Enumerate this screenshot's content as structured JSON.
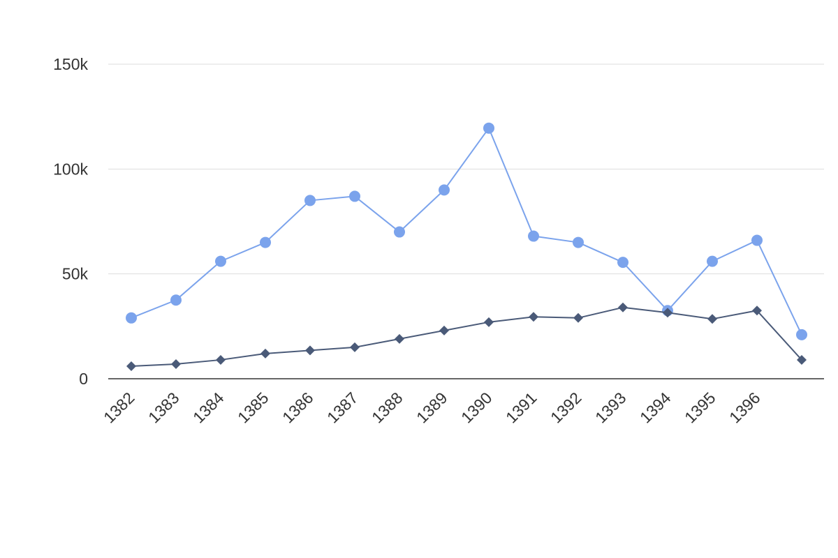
{
  "chart_data": {
    "type": "line",
    "title": "",
    "xlabel": "",
    "ylabel": "",
    "x": [
      "1382",
      "1383",
      "1384",
      "1385",
      "1386",
      "1387",
      "1388",
      "1389",
      "1390",
      "1391",
      "1392",
      "1393",
      "1394",
      "1395",
      "1396",
      ""
    ],
    "ylim": [
      0,
      150000
    ],
    "y_ticks": [
      {
        "value": 0,
        "label": "0"
      },
      {
        "value": 50000,
        "label": "50k"
      },
      {
        "value": 100000,
        "label": "100k"
      },
      {
        "value": 150000,
        "label": "150k"
      }
    ],
    "grid": true,
    "legend": "none",
    "series": [
      {
        "color": "#7ba3ec",
        "marker": "circle",
        "values": [
          29000,
          37500,
          56000,
          65000,
          85000,
          87000,
          70000,
          90000,
          119500,
          68000,
          65000,
          55500,
          32500,
          56000,
          66000,
          21000
        ]
      },
      {
        "color": "#4a5a78",
        "marker": "diamond",
        "values": [
          6000,
          7000,
          9000,
          12000,
          13500,
          15000,
          19000,
          23000,
          27000,
          29500,
          29000,
          34000,
          31500,
          28500,
          32500,
          9000
        ]
      }
    ]
  }
}
